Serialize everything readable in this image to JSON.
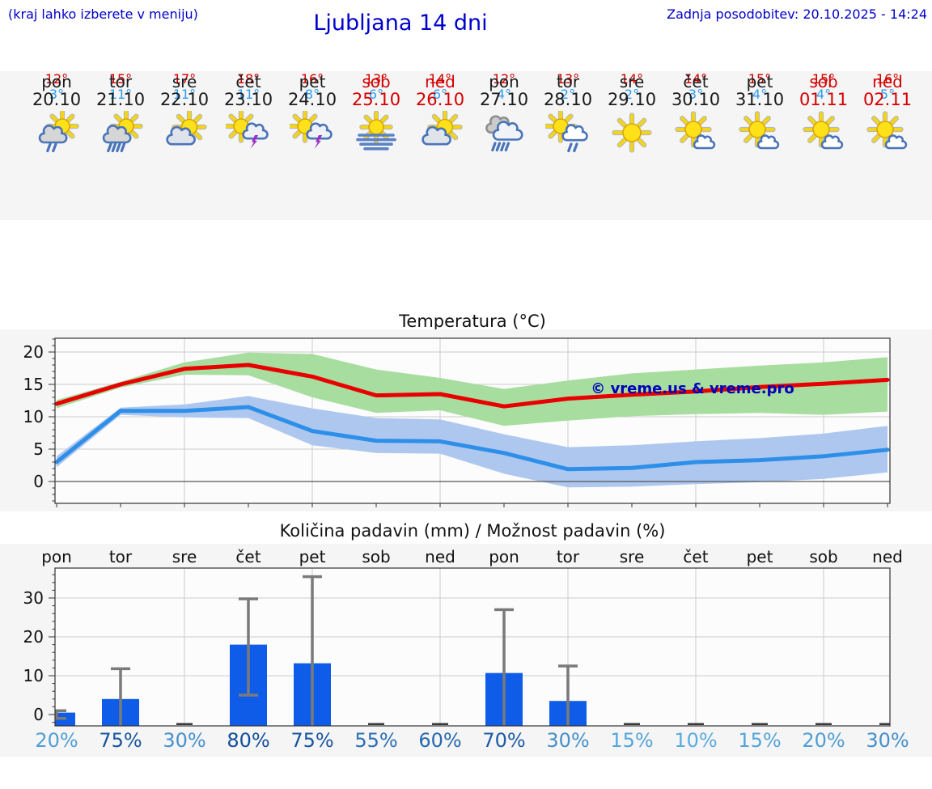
{
  "header": {
    "hint": "(kraj lahko izberete v meniju)",
    "title": "Ljubljana 14 dni",
    "updated": "Zadnja posodobitev: 20.10.2025 - 14:24"
  },
  "days": [
    {
      "name": "pon",
      "date": "20.10",
      "icon": "sun-cloud-light-rain",
      "high": "12°",
      "low": "3°",
      "weekend": false
    },
    {
      "name": "tor",
      "date": "21.10",
      "icon": "sun-cloud-heavy-rain",
      "high": "15°",
      "low": "11°",
      "weekend": false
    },
    {
      "name": "sre",
      "date": "22.10",
      "icon": "sun-cloud",
      "high": "17°",
      "low": "11°",
      "weekend": false
    },
    {
      "name": "čet",
      "date": "23.10",
      "icon": "sun-cloud-storm",
      "high": "18°",
      "low": "11°",
      "weekend": false
    },
    {
      "name": "pet",
      "date": "24.10",
      "icon": "sun-cloud-storm",
      "high": "16°",
      "low": "8°",
      "weekend": false
    },
    {
      "name": "sob",
      "date": "25.10",
      "icon": "fog-sun",
      "high": "13°",
      "low": "6°",
      "weekend": true
    },
    {
      "name": "ned",
      "date": "26.10",
      "icon": "sun-cloud",
      "high": "14°",
      "low": "6°",
      "weekend": true
    },
    {
      "name": "pon",
      "date": "27.10",
      "icon": "clouds-heavy-rain",
      "high": "12°",
      "low": "4°",
      "weekend": false
    },
    {
      "name": "tor",
      "date": "28.10",
      "icon": "sun-cloud-rain",
      "high": "13°",
      "low": "2°",
      "weekend": false
    },
    {
      "name": "sre",
      "date": "29.10",
      "icon": "sun",
      "high": "14°",
      "low": "2°",
      "weekend": false
    },
    {
      "name": "čet",
      "date": "30.10",
      "icon": "sun-small-cloud",
      "high": "14°",
      "low": "3°",
      "weekend": false
    },
    {
      "name": "pet",
      "date": "31.10",
      "icon": "sun-small-cloud",
      "high": "15°",
      "low": "4°",
      "weekend": false
    },
    {
      "name": "sob",
      "date": "01.11",
      "icon": "sun-small-cloud",
      "high": "15°",
      "low": "4°",
      "weekend": true
    },
    {
      "name": "ned",
      "date": "02.11",
      "icon": "sun-small-cloud",
      "high": "16°",
      "low": "5°",
      "weekend": true
    }
  ],
  "chart_data": [
    {
      "type": "line",
      "title": "Temperatura (°C)",
      "x": [
        "20.10",
        "21.10",
        "22.10",
        "23.10",
        "24.10",
        "25.10",
        "26.10",
        "27.10",
        "28.10",
        "29.10",
        "30.10",
        "31.10",
        "01.11",
        "02.11"
      ],
      "series": [
        {
          "name": "max-temperature",
          "color": "#e80000",
          "band_color": "#a7dd9e",
          "values": [
            12,
            15,
            17.4,
            18,
            16.2,
            13.3,
            13.5,
            11.6,
            12.8,
            13.4,
            13.9,
            14.6,
            15.1,
            15.7
          ],
          "band_upper": [
            12.6,
            15.4,
            18.4,
            19.9,
            19.7,
            17.3,
            16,
            14.3,
            15.6,
            16.7,
            17.3,
            17.9,
            18.4,
            19.2
          ],
          "band_lower": [
            11.3,
            14.5,
            16.5,
            16.4,
            13,
            10.6,
            11,
            8.6,
            9.4,
            10.1,
            10.4,
            10.6,
            10.3,
            10.8
          ]
        },
        {
          "name": "min-temperature",
          "color": "#2e8fe8",
          "band_color": "#aec7ef",
          "values": [
            3,
            10.9,
            10.9,
            11.5,
            7.8,
            6.3,
            6.2,
            4.4,
            1.9,
            2.1,
            3,
            3.3,
            3.9,
            4.9
          ],
          "band_upper": [
            3.9,
            11.4,
            11.9,
            13.2,
            11.3,
            9.8,
            9.6,
            7.3,
            5.3,
            5.6,
            6.2,
            6.7,
            7.4,
            8.6
          ],
          "band_lower": [
            2.2,
            10.3,
            9.9,
            9.8,
            5.6,
            4.4,
            4.3,
            1.2,
            -0.9,
            -0.8,
            -0.4,
            -0.1,
            0.4,
            1.4
          ]
        }
      ],
      "yticks": [
        0,
        5,
        10,
        15,
        20
      ],
      "ylim": [
        -3.4,
        22.1
      ],
      "grid": true,
      "watermark": "© vreme.us & vreme.pro"
    },
    {
      "type": "bar",
      "title": "Količina padavin (mm) / Možnost padavin (%)",
      "categories": [
        "pon",
        "tor",
        "sre",
        "čet",
        "pet",
        "sob",
        "ned",
        "pon",
        "tor",
        "sre",
        "čet",
        "pet",
        "sob",
        "ned"
      ],
      "values": [
        0.5,
        4,
        0,
        18,
        13.2,
        0,
        0,
        10.7,
        3.5,
        0,
        0,
        0,
        0,
        0
      ],
      "whiskers": [
        [
          -1,
          1
        ],
        [
          -3,
          11.8
        ],
        null,
        [
          5,
          29.8
        ],
        [
          -3,
          35.5
        ],
        null,
        null,
        [
          -3,
          27
        ],
        [
          -3,
          12.5
        ],
        null,
        null,
        null,
        null,
        null
      ],
      "probability_percent": [
        20,
        75,
        30,
        80,
        75,
        55,
        60,
        70,
        30,
        15,
        10,
        15,
        20,
        30
      ],
      "probability_labels": [
        "20%",
        "75%",
        "30%",
        "80%",
        "75%",
        "55%",
        "60%",
        "70%",
        "30%",
        "15%",
        "10%",
        "15%",
        "20%",
        "30%"
      ],
      "yticks": [
        0,
        10,
        20,
        30
      ],
      "ylim": [
        -2.9,
        37.7
      ],
      "grid": true
    }
  ],
  "colors": {
    "header_blue": "#0000cc",
    "weekend_red": "#d40000",
    "high_red": "#d40000",
    "low_blue": "#2b9cf2",
    "day_text": "#1a1a1a",
    "strip_bg": "#f5f5f5",
    "plot_bg": "#fcfcfc",
    "grid": "#cccccc",
    "axis": "#333333",
    "zero_line": "#555555",
    "bar_blue": "#0f5ce8",
    "whisker_gray": "#7a7a7a",
    "dry_mark": "#3a3a3a",
    "watermark_blue": "#0000bb",
    "prob_light": "#5aabde",
    "prob_dark": "#134e9b"
  }
}
